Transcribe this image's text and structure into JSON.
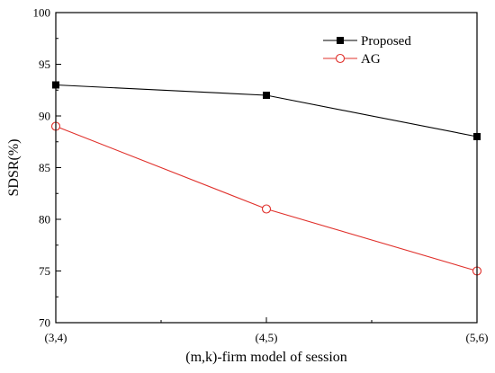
{
  "chart_data": {
    "type": "line",
    "categories": [
      "(3,4)",
      "(4,5)",
      "(5,6)"
    ],
    "series": [
      {
        "name": "Proposed",
        "values": [
          93,
          92,
          88
        ],
        "color": "#000000",
        "marker": "filled-square"
      },
      {
        "name": "AG",
        "values": [
          89,
          81,
          75
        ],
        "color": "#e0302b",
        "marker": "open-circle"
      }
    ],
    "title": "",
    "xlabel": "(m,k)-firm model of session",
    "ylabel": "SDSR(%)",
    "ylim": [
      70,
      100
    ],
    "yticks": [
      "70",
      "75",
      "80",
      "85",
      "90",
      "95",
      "100"
    ],
    "grid": false,
    "legend_position": "top-right"
  }
}
